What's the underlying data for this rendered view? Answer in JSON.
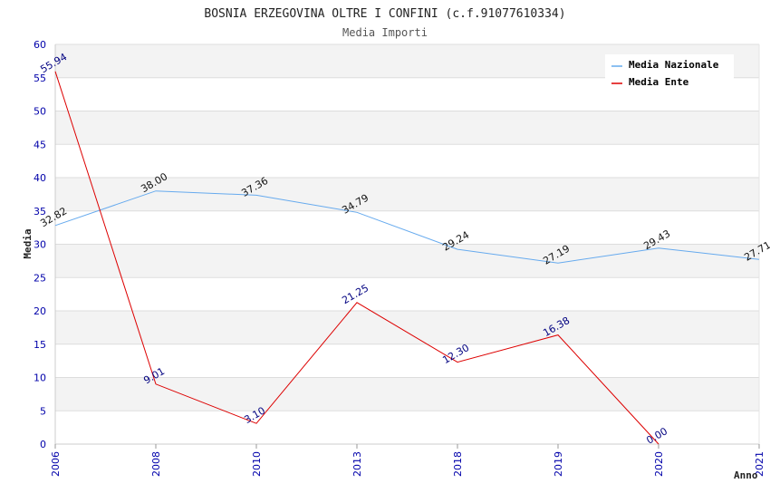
{
  "chart_data": {
    "type": "line",
    "title": "BOSNIA ERZEGOVINA OLTRE I CONFINI (c.f.91077610334)",
    "subtitle": "Media Importi",
    "xlabel": "Anno",
    "ylabel": "Media",
    "ylim": [
      0,
      60
    ],
    "yticks": [
      "0",
      "5",
      "10",
      "15",
      "20",
      "25",
      "30",
      "35",
      "40",
      "45",
      "50",
      "55",
      "60"
    ],
    "categories": [
      "2006",
      "2008",
      "2010",
      "2013",
      "2018",
      "2019",
      "2020",
      "2021"
    ],
    "grid": true,
    "legend_position": "top-right",
    "series": [
      {
        "name": "Media Nazionale",
        "color": "#66aaee",
        "values": [
          32.82,
          38.0,
          37.36,
          34.79,
          29.24,
          27.19,
          29.43,
          27.71
        ],
        "labels": [
          "32.82",
          "38.00",
          "37.36",
          "34.79",
          "29.24",
          "27.19",
          "29.43",
          "27.71"
        ]
      },
      {
        "name": "Media Ente",
        "color": "#dd0000",
        "values": [
          55.94,
          9.01,
          3.1,
          21.25,
          12.3,
          16.38,
          0.0,
          null
        ],
        "labels": [
          "55.94",
          "9.01",
          "3.10",
          "21.25",
          "12.30",
          "16.38",
          "0.00",
          null
        ]
      }
    ]
  }
}
